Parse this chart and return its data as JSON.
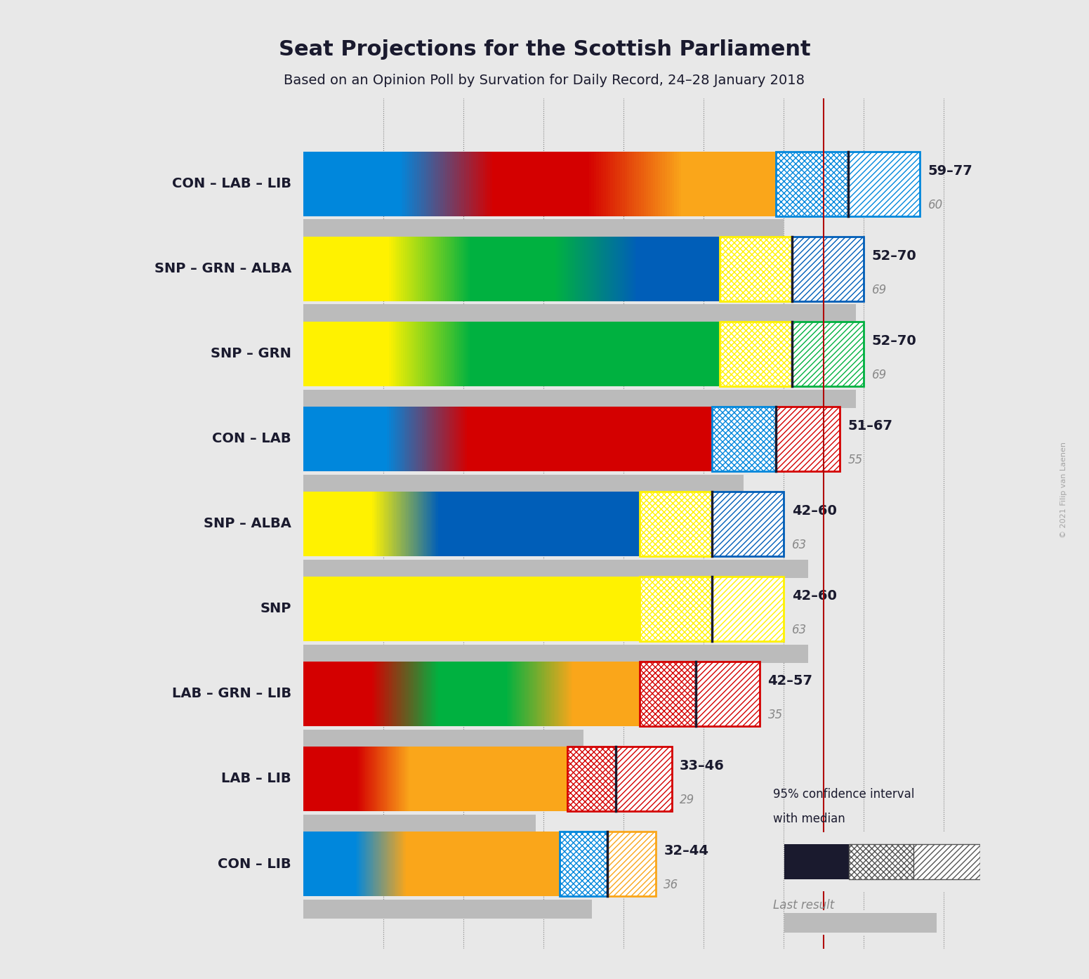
{
  "title": "Seat Projections for the Scottish Parliament",
  "subtitle": "Based on an Opinion Poll by Survation for Daily Record, 24–28 January 2018",
  "watermark": "© 2021 Filip van Laenen",
  "coalitions": [
    {
      "name": "CON – LAB – LIB",
      "ci_low": 59,
      "median": 68,
      "ci_high": 77,
      "last": 60,
      "underline": false,
      "colors": [
        "#0087DC",
        "#0087DC",
        "#D40000",
        "#D40000",
        "#FAA61A",
        "#FAA61A"
      ],
      "ci_color_low": "#0087DC",
      "ci_color_high": "#FAA61A",
      "border_color": "#0087DC"
    },
    {
      "name": "SNP – GRN – ALBA",
      "ci_low": 52,
      "median": 61,
      "ci_high": 70,
      "last": 69,
      "underline": false,
      "colors": [
        "#FFF200",
        "#FFF200",
        "#00B140",
        "#00B140",
        "#005EB8",
        "#005EB8"
      ],
      "ci_color_low": "#FFF200",
      "ci_color_high": "#005EB8",
      "border_color": "#005EB8"
    },
    {
      "name": "SNP – GRN",
      "ci_low": 52,
      "median": 61,
      "ci_high": 70,
      "last": 69,
      "underline": false,
      "colors": [
        "#FFF200",
        "#FFF200",
        "#00B140",
        "#00B140",
        "#00B140",
        "#00B140"
      ],
      "ci_color_low": "#FFF200",
      "ci_color_high": "#00B140",
      "border_color": "#00B140"
    },
    {
      "name": "CON – LAB",
      "ci_low": 51,
      "median": 59,
      "ci_high": 67,
      "last": 55,
      "underline": false,
      "colors": [
        "#0087DC",
        "#0087DC",
        "#D40000",
        "#D40000",
        "#D40000",
        "#D40000"
      ],
      "ci_color_low": "#0087DC",
      "ci_color_high": "#D40000",
      "border_color": "#D40000"
    },
    {
      "name": "SNP – ALBA",
      "ci_low": 42,
      "median": 51,
      "ci_high": 60,
      "last": 63,
      "underline": false,
      "colors": [
        "#FFF200",
        "#FFF200",
        "#005EB8",
        "#005EB8",
        "#005EB8",
        "#005EB8"
      ],
      "ci_color_low": "#FFF200",
      "ci_color_high": "#005EB8",
      "border_color": "#005EB8"
    },
    {
      "name": "SNP",
      "ci_low": 42,
      "median": 51,
      "ci_high": 60,
      "last": 63,
      "underline": true,
      "colors": [
        "#FFF200",
        "#FFF200",
        "#FFF200",
        "#FFF200",
        "#FFF200",
        "#FFF200"
      ],
      "ci_color_low": "#FFF200",
      "ci_color_high": "#FFF200",
      "border_color": "#FFF200"
    },
    {
      "name": "LAB – GRN – LIB",
      "ci_low": 42,
      "median": 49,
      "ci_high": 57,
      "last": 35,
      "underline": false,
      "colors": [
        "#D40000",
        "#D40000",
        "#00B140",
        "#00B140",
        "#FAA61A",
        "#FAA61A"
      ],
      "ci_color_low": "#D40000",
      "ci_color_high": "#FAA61A",
      "border_color": "#D40000"
    },
    {
      "name": "LAB – LIB",
      "ci_low": 33,
      "median": 39,
      "ci_high": 46,
      "last": 29,
      "underline": false,
      "colors": [
        "#D40000",
        "#D40000",
        "#FAA61A",
        "#FAA61A",
        "#FAA61A",
        "#FAA61A"
      ],
      "ci_color_low": "#D40000",
      "ci_color_high": "#FAA61A",
      "border_color": "#D40000"
    },
    {
      "name": "CON – LIB",
      "ci_low": 32,
      "median": 38,
      "ci_high": 44,
      "last": 36,
      "underline": false,
      "colors": [
        "#0087DC",
        "#0087DC",
        "#FAA61A",
        "#FAA61A",
        "#FAA61A",
        "#FAA61A"
      ],
      "ci_color_low": "#0087DC",
      "ci_color_high": "#FAA61A",
      "border_color": "#FAA61A"
    }
  ],
  "xmax": 90,
  "majority_line": 65,
  "background_color": "#E8E8E8",
  "bar_height": 0.38,
  "gray_bar_height": 0.22
}
